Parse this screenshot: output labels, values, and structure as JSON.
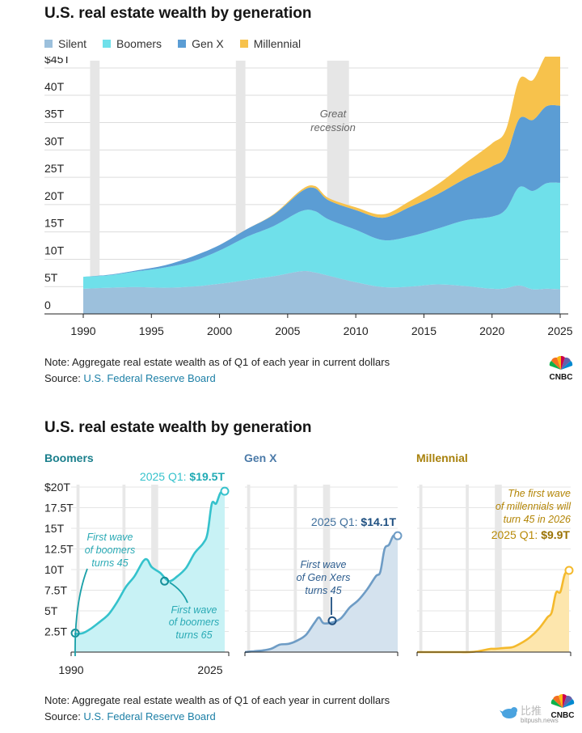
{
  "chart_data": [
    {
      "type": "area",
      "stacked": true,
      "title": "U.S. real estate wealth by generation",
      "x": [
        1990,
        1992,
        1994,
        1996,
        1998,
        2000,
        2002,
        2004,
        2006,
        2007,
        2008,
        2010,
        2012,
        2014,
        2016,
        2018,
        2020,
        2021,
        2022,
        2023,
        2024,
        2025
      ],
      "series": [
        {
          "name": "Silent",
          "color": "#9cc0dc",
          "values": [
            4.6,
            4.8,
            4.9,
            4.8,
            5.0,
            5.5,
            6.2,
            6.9,
            7.8,
            7.6,
            7.0,
            5.8,
            4.9,
            5.0,
            5.4,
            5.1,
            4.6,
            4.7,
            5.2,
            4.5,
            4.6,
            4.5
          ]
        },
        {
          "name": "Boomers",
          "color": "#6fe0ea",
          "values": [
            2.2,
            2.3,
            2.9,
            3.7,
            4.6,
            6.1,
            7.9,
            9.2,
            11.0,
            11.2,
            10.3,
            9.6,
            8.6,
            9.2,
            10.2,
            12.0,
            13.2,
            14.4,
            18.0,
            18.0,
            19.3,
            19.5
          ]
        },
        {
          "name": "Gen X",
          "color": "#5b9dd4",
          "values": [
            0.0,
            0.1,
            0.2,
            0.4,
            0.9,
            1.0,
            1.4,
            2.1,
            3.6,
            4.2,
            3.5,
            3.6,
            4.1,
            5.4,
            6.3,
            7.6,
            9.2,
            9.7,
            12.5,
            13.0,
            14.1,
            14.1
          ]
        },
        {
          "name": "Millennial",
          "color": "#f7c24c",
          "values": [
            0.0,
            0.0,
            0.0,
            0.0,
            0.0,
            0.0,
            0.0,
            0.1,
            0.3,
            0.4,
            0.4,
            0.5,
            0.6,
            1.1,
            1.8,
            2.8,
            4.2,
            4.8,
            7.2,
            7.3,
            9.4,
            9.9
          ]
        }
      ],
      "xticks": [
        1990,
        1995,
        2000,
        2005,
        2010,
        2015,
        2020,
        2025
      ],
      "yticks": [
        0,
        5,
        10,
        15,
        20,
        25,
        30,
        35,
        40,
        45
      ],
      "ytick_labels": [
        "0",
        "5T",
        "10T",
        "15T",
        "20T",
        "25T",
        "30T",
        "35T",
        "40T",
        "$45T"
      ],
      "ylim": [
        0,
        47
      ],
      "recessions": [
        [
          1990.5,
          1991.2
        ],
        [
          2001.2,
          2001.9
        ],
        [
          2007.9,
          2009.5
        ]
      ],
      "annotation": "Great recession"
    },
    {
      "type": "area",
      "title": "U.S. real estate wealth by generation",
      "panels": [
        {
          "name": "Boomers",
          "color": "#35c2cc",
          "fill": "#c8f2f5",
          "callout_prefix": "2025 Q1: ",
          "callout_value": "$19.5T",
          "notes": [
            "First wave of boomers turns 45",
            "First wave of boomers turns 65"
          ]
        },
        {
          "name": "Gen X",
          "color": "#6e9cc5",
          "fill": "#d4e2ee",
          "callout_prefix": "2025 Q1: ",
          "callout_value": "$14.1T",
          "notes": [
            "First wave of Gen Xers turns 45"
          ]
        },
        {
          "name": "Millennial",
          "color": "#f4b92c",
          "fill": "#fde6ad",
          "callout_prefix": "2025 Q1: ",
          "callout_value": "$9.9T",
          "notes": [
            "The first wave of millennials will turn 45 in 2026"
          ]
        }
      ],
      "yticks": [
        2.5,
        5,
        7.5,
        10,
        12.5,
        15,
        17.5,
        20
      ],
      "ytick_labels": [
        "2.5T",
        "5T",
        "7.5T",
        "10T",
        "12.5T",
        "15T",
        "17.5T",
        "$20T"
      ],
      "ylim": [
        0,
        20
      ],
      "xticks": [
        "1990",
        "2025"
      ]
    }
  ],
  "header": {
    "title": "U.S. real estate wealth by generation"
  },
  "note": "Note: Aggregate real estate wealth as of Q1 of each year in current dollars",
  "source_label": "Source: ",
  "source_link": "U.S. Federal Reserve Board",
  "logo": "CNBC",
  "watermark": {
    "cn": "比推",
    "en": "bitpush.news"
  },
  "note_texts": {
    "great": "Great",
    "recession": "recession",
    "bw45": [
      "First wave",
      "of boomers",
      "turns 45"
    ],
    "bw65": [
      "First wave",
      "of boomers",
      "turns 65"
    ],
    "gx45": [
      "First wave",
      "of Gen Xers",
      "turns 45"
    ],
    "mil": [
      "The first wave",
      "of millennials will",
      "turn 45 in 2026"
    ]
  }
}
